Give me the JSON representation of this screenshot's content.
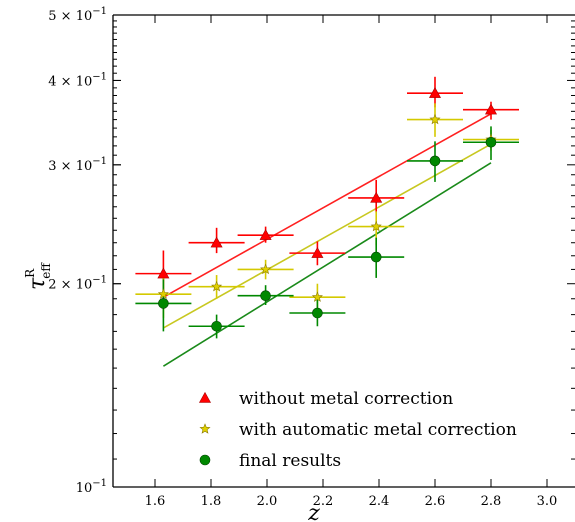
{
  "chart_data": {
    "type": "scatter",
    "title": "",
    "xlabel": "z",
    "ylabel_main": "τ",
    "ylabel_sup": "R",
    "ylabel_sub": "eff",
    "xlim": [
      1.45,
      3.1
    ],
    "ylim": [
      0.1,
      0.5
    ],
    "yscale": "log",
    "grid": false,
    "legend_position": "lower-center",
    "x_ticks": [
      1.6,
      1.8,
      2.0,
      2.2,
      2.4,
      2.6,
      2.8,
      3.0
    ],
    "x_tick_labels": [
      "1.6",
      "1.8",
      "2.0",
      "2.2",
      "2.4",
      "2.6",
      "2.8",
      "3.0"
    ],
    "y_ticks": [
      {
        "value": 0.1,
        "mant": "10",
        "exp": "−1"
      },
      {
        "value": 0.2,
        "mant": "2 × 10",
        "exp": "−1"
      },
      {
        "value": 0.3,
        "mant": "3 × 10",
        "exp": "−1"
      },
      {
        "value": 0.4,
        "mant": "4 × 10",
        "exp": "−1"
      },
      {
        "value": 0.5,
        "mant": "5 × 10",
        "exp": "−1"
      }
    ],
    "series": [
      {
        "name": "without metal correction",
        "marker": "triangle",
        "color": "#ff0000",
        "fit_color": "#ff2020",
        "fit": [
          [
            1.63,
            0.191
          ],
          [
            2.8,
            0.357
          ]
        ],
        "points": [
          {
            "x": 1.63,
            "y": 0.207,
            "xerr": 0.1,
            "ylo": 0.192,
            "yhi": 0.224
          },
          {
            "x": 1.82,
            "y": 0.23,
            "xerr": 0.1,
            "ylo": 0.222,
            "yhi": 0.242
          },
          {
            "x": 1.995,
            "y": 0.236,
            "xerr": 0.1,
            "ylo": 0.23,
            "yhi": 0.243
          },
          {
            "x": 2.18,
            "y": 0.222,
            "xerr": 0.1,
            "ylo": 0.213,
            "yhi": 0.231
          },
          {
            "x": 2.39,
            "y": 0.268,
            "xerr": 0.1,
            "ylo": 0.255,
            "yhi": 0.285
          },
          {
            "x": 2.6,
            "y": 0.383,
            "xerr": 0.1,
            "ylo": 0.365,
            "yhi": 0.405
          },
          {
            "x": 2.8,
            "y": 0.362,
            "xerr": 0.1,
            "ylo": 0.35,
            "yhi": 0.372
          }
        ]
      },
      {
        "name": "with automatic metal correction",
        "marker": "star",
        "color": "#d4c900",
        "fit_color": "#c8c820",
        "fit": [
          [
            1.63,
            0.172
          ],
          [
            2.8,
            0.322
          ]
        ],
        "points": [
          {
            "x": 1.63,
            "y": 0.193,
            "xerr": 0.1,
            "ylo": 0.178,
            "yhi": 0.208
          },
          {
            "x": 1.82,
            "y": 0.198,
            "xerr": 0.1,
            "ylo": 0.19,
            "yhi": 0.206
          },
          {
            "x": 1.995,
            "y": 0.21,
            "xerr": 0.1,
            "ylo": 0.203,
            "yhi": 0.217
          },
          {
            "x": 2.18,
            "y": 0.191,
            "xerr": 0.1,
            "ylo": 0.183,
            "yhi": 0.2
          },
          {
            "x": 2.39,
            "y": 0.243,
            "xerr": 0.1,
            "ylo": 0.228,
            "yhi": 0.256
          },
          {
            "x": 2.6,
            "y": 0.35,
            "xerr": 0.1,
            "ylo": 0.33,
            "yhi": 0.37
          },
          {
            "x": 2.8,
            "y": 0.327,
            "xerr": 0.1,
            "ylo": 0.315,
            "yhi": 0.338
          }
        ]
      },
      {
        "name": "final results",
        "marker": "circle",
        "color": "#008800",
        "fit_color": "#1a8a1a",
        "fit": [
          [
            1.63,
            0.151
          ],
          [
            2.8,
            0.302
          ]
        ],
        "points": [
          {
            "x": 1.63,
            "y": 0.187,
            "xerr": 0.1,
            "ylo": 0.17,
            "yhi": 0.203
          },
          {
            "x": 1.82,
            "y": 0.173,
            "xerr": 0.1,
            "ylo": 0.166,
            "yhi": 0.18
          },
          {
            "x": 1.995,
            "y": 0.192,
            "xerr": 0.1,
            "ylo": 0.186,
            "yhi": 0.199
          },
          {
            "x": 2.18,
            "y": 0.181,
            "xerr": 0.1,
            "ylo": 0.173,
            "yhi": 0.19
          },
          {
            "x": 2.39,
            "y": 0.219,
            "xerr": 0.1,
            "ylo": 0.204,
            "yhi": 0.234
          },
          {
            "x": 2.6,
            "y": 0.304,
            "xerr": 0.1,
            "ylo": 0.283,
            "yhi": 0.325
          },
          {
            "x": 2.8,
            "y": 0.324,
            "xerr": 0.1,
            "ylo": 0.305,
            "yhi": 0.342
          }
        ]
      }
    ]
  }
}
